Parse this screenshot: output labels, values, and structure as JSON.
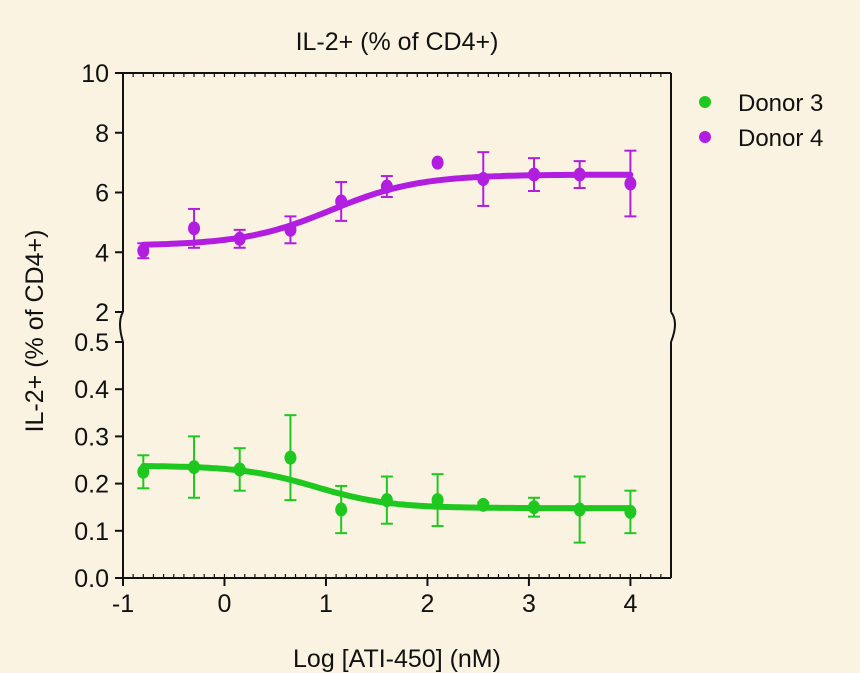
{
  "chart_data": {
    "type": "scatter",
    "title": "IL-2+ (% of CD4+)",
    "xlabel": "Log [ATI-450] (nM)",
    "ylabel": "IL-2+ (% of CD4+)",
    "xlim": [
      -1,
      4.4
    ],
    "x_ticks": [
      -1,
      0,
      1,
      2,
      3,
      4
    ],
    "y_axis_break": true,
    "y_upper_segment": {
      "ylim": [
        2,
        10
      ],
      "ticks": [
        2,
        4,
        6,
        8,
        10
      ]
    },
    "y_lower_segment": {
      "ylim": [
        0,
        0.5
      ],
      "ticks": [
        0.0,
        0.1,
        0.2,
        0.3,
        0.4,
        0.5
      ]
    },
    "legend_position": "right",
    "series": [
      {
        "name": "Donor 3",
        "color": "#1ec81e",
        "segment": "lower",
        "x": [
          -0.8,
          -0.3,
          0.15,
          0.65,
          1.15,
          1.6,
          2.1,
          2.55,
          3.05,
          3.5,
          4.0
        ],
        "y": [
          0.225,
          0.235,
          0.23,
          0.255,
          0.145,
          0.165,
          0.165,
          0.155,
          0.15,
          0.145,
          0.14
        ],
        "err": [
          0.035,
          0.065,
          0.045,
          0.09,
          0.05,
          0.05,
          0.055,
          0.005,
          0.02,
          0.07,
          0.045
        ],
        "fit": {
          "bottom": 0.148,
          "top": 0.238,
          "logEC50": 0.9,
          "hill": 1.2
        }
      },
      {
        "name": "Donor 4",
        "color": "#b11ee0",
        "segment": "upper",
        "x": [
          -0.8,
          -0.3,
          0.15,
          0.65,
          1.15,
          1.6,
          2.1,
          2.55,
          3.05,
          3.5,
          4.0
        ],
        "y": [
          4.05,
          4.8,
          4.45,
          4.75,
          5.7,
          6.2,
          7.0,
          6.45,
          6.6,
          6.6,
          6.3
        ],
        "err": [
          0.25,
          0.65,
          0.3,
          0.45,
          0.65,
          0.35,
          0.0,
          0.9,
          0.55,
          0.45,
          1.1
        ],
        "fit": {
          "bottom": 4.22,
          "top": 6.6,
          "logEC50": 1.05,
          "hill": 1.0
        }
      }
    ]
  }
}
